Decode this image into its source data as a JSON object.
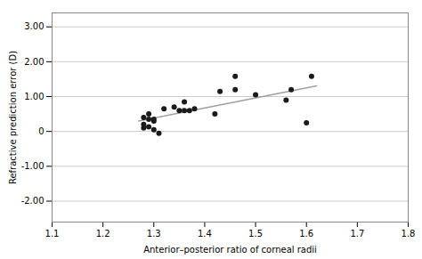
{
  "chart_data": {
    "type": "scatter",
    "x": [
      1.28,
      1.29,
      1.28,
      1.3,
      1.29,
      1.3,
      1.31,
      1.3,
      1.28,
      1.29,
      1.32,
      1.34,
      1.35,
      1.36,
      1.36,
      1.37,
      1.38,
      1.42,
      1.43,
      1.46,
      1.46,
      1.5,
      1.56,
      1.57,
      1.6,
      1.61
    ],
    "values": [
      0.1,
      0.13,
      0.2,
      0.3,
      0.35,
      0.35,
      -0.05,
      0.05,
      0.4,
      0.5,
      0.65,
      0.7,
      0.6,
      0.6,
      0.85,
      0.6,
      0.65,
      0.5,
      1.15,
      1.2,
      1.58,
      1.05,
      0.9,
      1.2,
      0.25,
      1.58
    ],
    "color": "#1a1a1a",
    "marker": "circle",
    "regression_line": {
      "type": "line",
      "x": [
        1.27,
        1.62
      ],
      "values": [
        0.29983,
        1.30587
      ],
      "color": "#a0a0a0"
    },
    "xlabel": "Anterior–posterior ratio of corneal radii",
    "ylabel": "Refractive prediction error (D)",
    "xlim": [
      1.1,
      1.8
    ],
    "ylim": [
      -2.6,
      3.4
    ],
    "xticks": [
      1.1,
      1.2,
      1.3,
      1.4,
      1.5,
      1.6,
      1.7,
      1.8
    ],
    "yticks": [
      {
        "value": -2,
        "label": "-2.00"
      },
      {
        "value": -1,
        "label": "-1.00"
      },
      0,
      {
        "value": 1,
        "label": "1.00"
      },
      {
        "value": 2,
        "label": "2.00"
      },
      {
        "value": 3,
        "label": "3.00"
      }
    ],
    "grid": "y"
  }
}
